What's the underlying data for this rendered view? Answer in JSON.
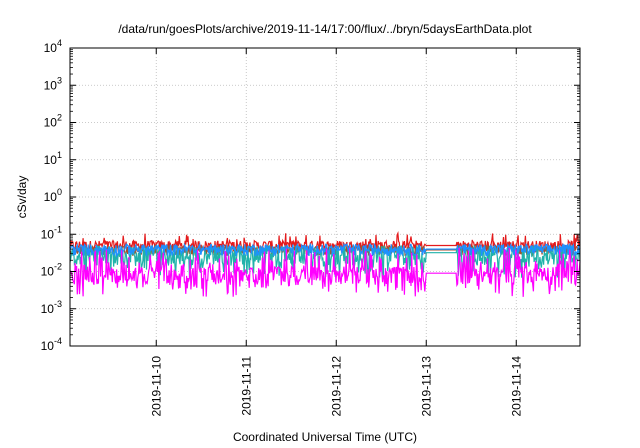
{
  "chart_data": {
    "type": "line",
    "title": "/data/run/goesPlots/archive/2019-11-14/17:00/flux/../bryn/5daysEarthData.plot",
    "xlabel": "Coordinated Universal Time (UTC)",
    "ylabel": "cSv/day",
    "y_scale": "log",
    "ylim": [
      0.0001,
      10000
    ],
    "y_ticks": [
      {
        "mantissa": "10",
        "exp": "-4",
        "value": 0.0001
      },
      {
        "mantissa": "10",
        "exp": "-3",
        "value": 0.001
      },
      {
        "mantissa": "10",
        "exp": "-2",
        "value": 0.01
      },
      {
        "mantissa": "10",
        "exp": "-1",
        "value": 0.1
      },
      {
        "mantissa": "10",
        "exp": "0",
        "value": 1
      },
      {
        "mantissa": "10",
        "exp": "1",
        "value": 10
      },
      {
        "mantissa": "10",
        "exp": "2",
        "value": 100
      },
      {
        "mantissa": "10",
        "exp": "3",
        "value": 1000
      },
      {
        "mantissa": "10",
        "exp": "4",
        "value": 10000
      }
    ],
    "xlim": [
      "2019-11-09T01:00",
      "2019-11-14T17:00"
    ],
    "x_ticks": [
      "2019-11-10",
      "2019-11-11",
      "2019-11-12",
      "2019-11-13",
      "2019-11-14"
    ],
    "grid": true,
    "gap": [
      "2019-11-13T00:00",
      "2019-11-13T08:00"
    ],
    "series": [
      {
        "color": "#e41a1c",
        "base": 0.05,
        "spread": 0.35
      },
      {
        "color": "#a0522d",
        "base": 0.038,
        "spread": 0.3
      },
      {
        "color": "#20b2aa",
        "base": 0.032,
        "spread": 0.55
      },
      {
        "color": "#1e90ff",
        "base": 0.04,
        "spread": 0.35
      },
      {
        "color": "#ff00ff",
        "base": 0.009,
        "spread": 0.5
      }
    ]
  }
}
